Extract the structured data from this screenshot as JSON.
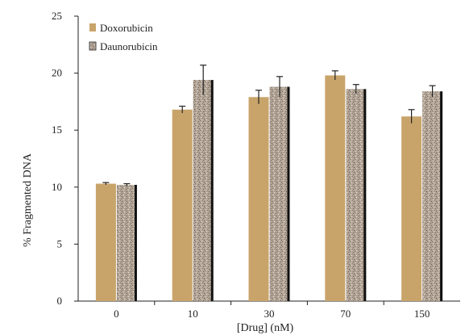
{
  "chart_data": {
    "type": "bar",
    "xlabel": "[Drug] (nM)",
    "ylabel": "% Fragmented DNA",
    "categories": [
      "0",
      "10",
      "30",
      "70",
      "150"
    ],
    "ylim": [
      0,
      25
    ],
    "yticks": [
      "0",
      "5",
      "10",
      "15",
      "20",
      "25"
    ],
    "grid": false,
    "legend_position": "top-left",
    "series": [
      {
        "name": "Doxorubicin",
        "values": [
          10.3,
          16.8,
          17.9,
          19.8,
          16.2
        ],
        "errors": [
          0.1,
          0.3,
          0.6,
          0.4,
          0.6
        ],
        "color": "#c9a46a"
      },
      {
        "name": "Daunorubicin",
        "values": [
          10.2,
          19.4,
          18.8,
          18.6,
          18.4
        ],
        "errors": [
          0.1,
          1.3,
          0.9,
          0.4,
          0.5
        ],
        "color": "#a89a8c"
      }
    ]
  }
}
